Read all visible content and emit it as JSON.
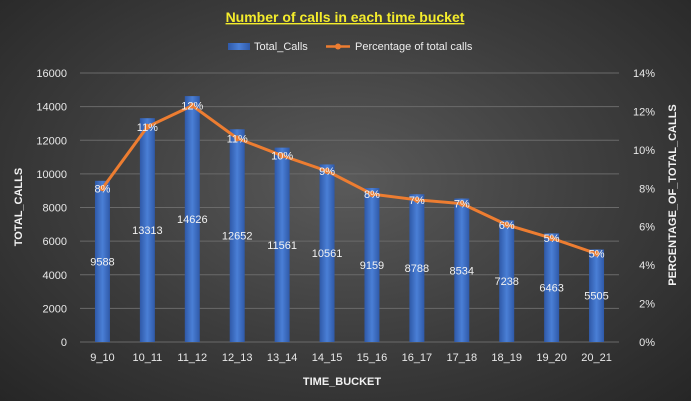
{
  "chart_data": {
    "type": "bar",
    "title": "Number of calls in each time bucket",
    "xlabel": "TIME_BUCKET",
    "ylabel": "TOTAL_CALLS",
    "y2label": "PERCENTAGE_OF_TOTAL_CALLS",
    "categories": [
      "9_10",
      "10_11",
      "11_12",
      "12_13",
      "13_14",
      "14_15",
      "15_16",
      "16_17",
      "17_18",
      "18_19",
      "19_20",
      "20_21"
    ],
    "series": [
      {
        "name": "Total_Calls",
        "type": "bar",
        "axis": "left",
        "values": [
          9588,
          13313,
          14626,
          12652,
          11561,
          10561,
          9159,
          8788,
          8534,
          7238,
          6463,
          5505
        ],
        "labels": [
          "9588",
          "13313",
          "14626",
          "12652",
          "11561",
          "10561",
          "9159",
          "8788",
          "8534",
          "7238",
          "6463",
          "5505"
        ],
        "color": "#4472c4"
      },
      {
        "name": "Percentage of total calls",
        "type": "line",
        "axis": "right",
        "values": [
          8.0,
          11.2,
          12.3,
          10.6,
          9.7,
          8.9,
          7.7,
          7.4,
          7.2,
          6.1,
          5.4,
          4.6
        ],
        "labels": [
          "8%",
          "11%",
          "12%",
          "11%",
          "10%",
          "9%",
          "8%",
          "7%",
          "7%",
          "6%",
          "5%",
          "5%"
        ],
        "color": "#ed7d31"
      }
    ],
    "ylim": [
      0,
      16000
    ],
    "yticks": [
      "0",
      "2000",
      "4000",
      "6000",
      "8000",
      "10000",
      "12000",
      "14000",
      "16000"
    ],
    "y2lim": [
      0,
      14
    ],
    "y2ticks": [
      "0%",
      "2%",
      "4%",
      "6%",
      "8%",
      "10%",
      "12%",
      "14%"
    ],
    "legend_position": "top",
    "grid": true,
    "colors": {
      "title": "#f4ec2c",
      "bar": "#4472c4",
      "line": "#ed7d31"
    }
  }
}
